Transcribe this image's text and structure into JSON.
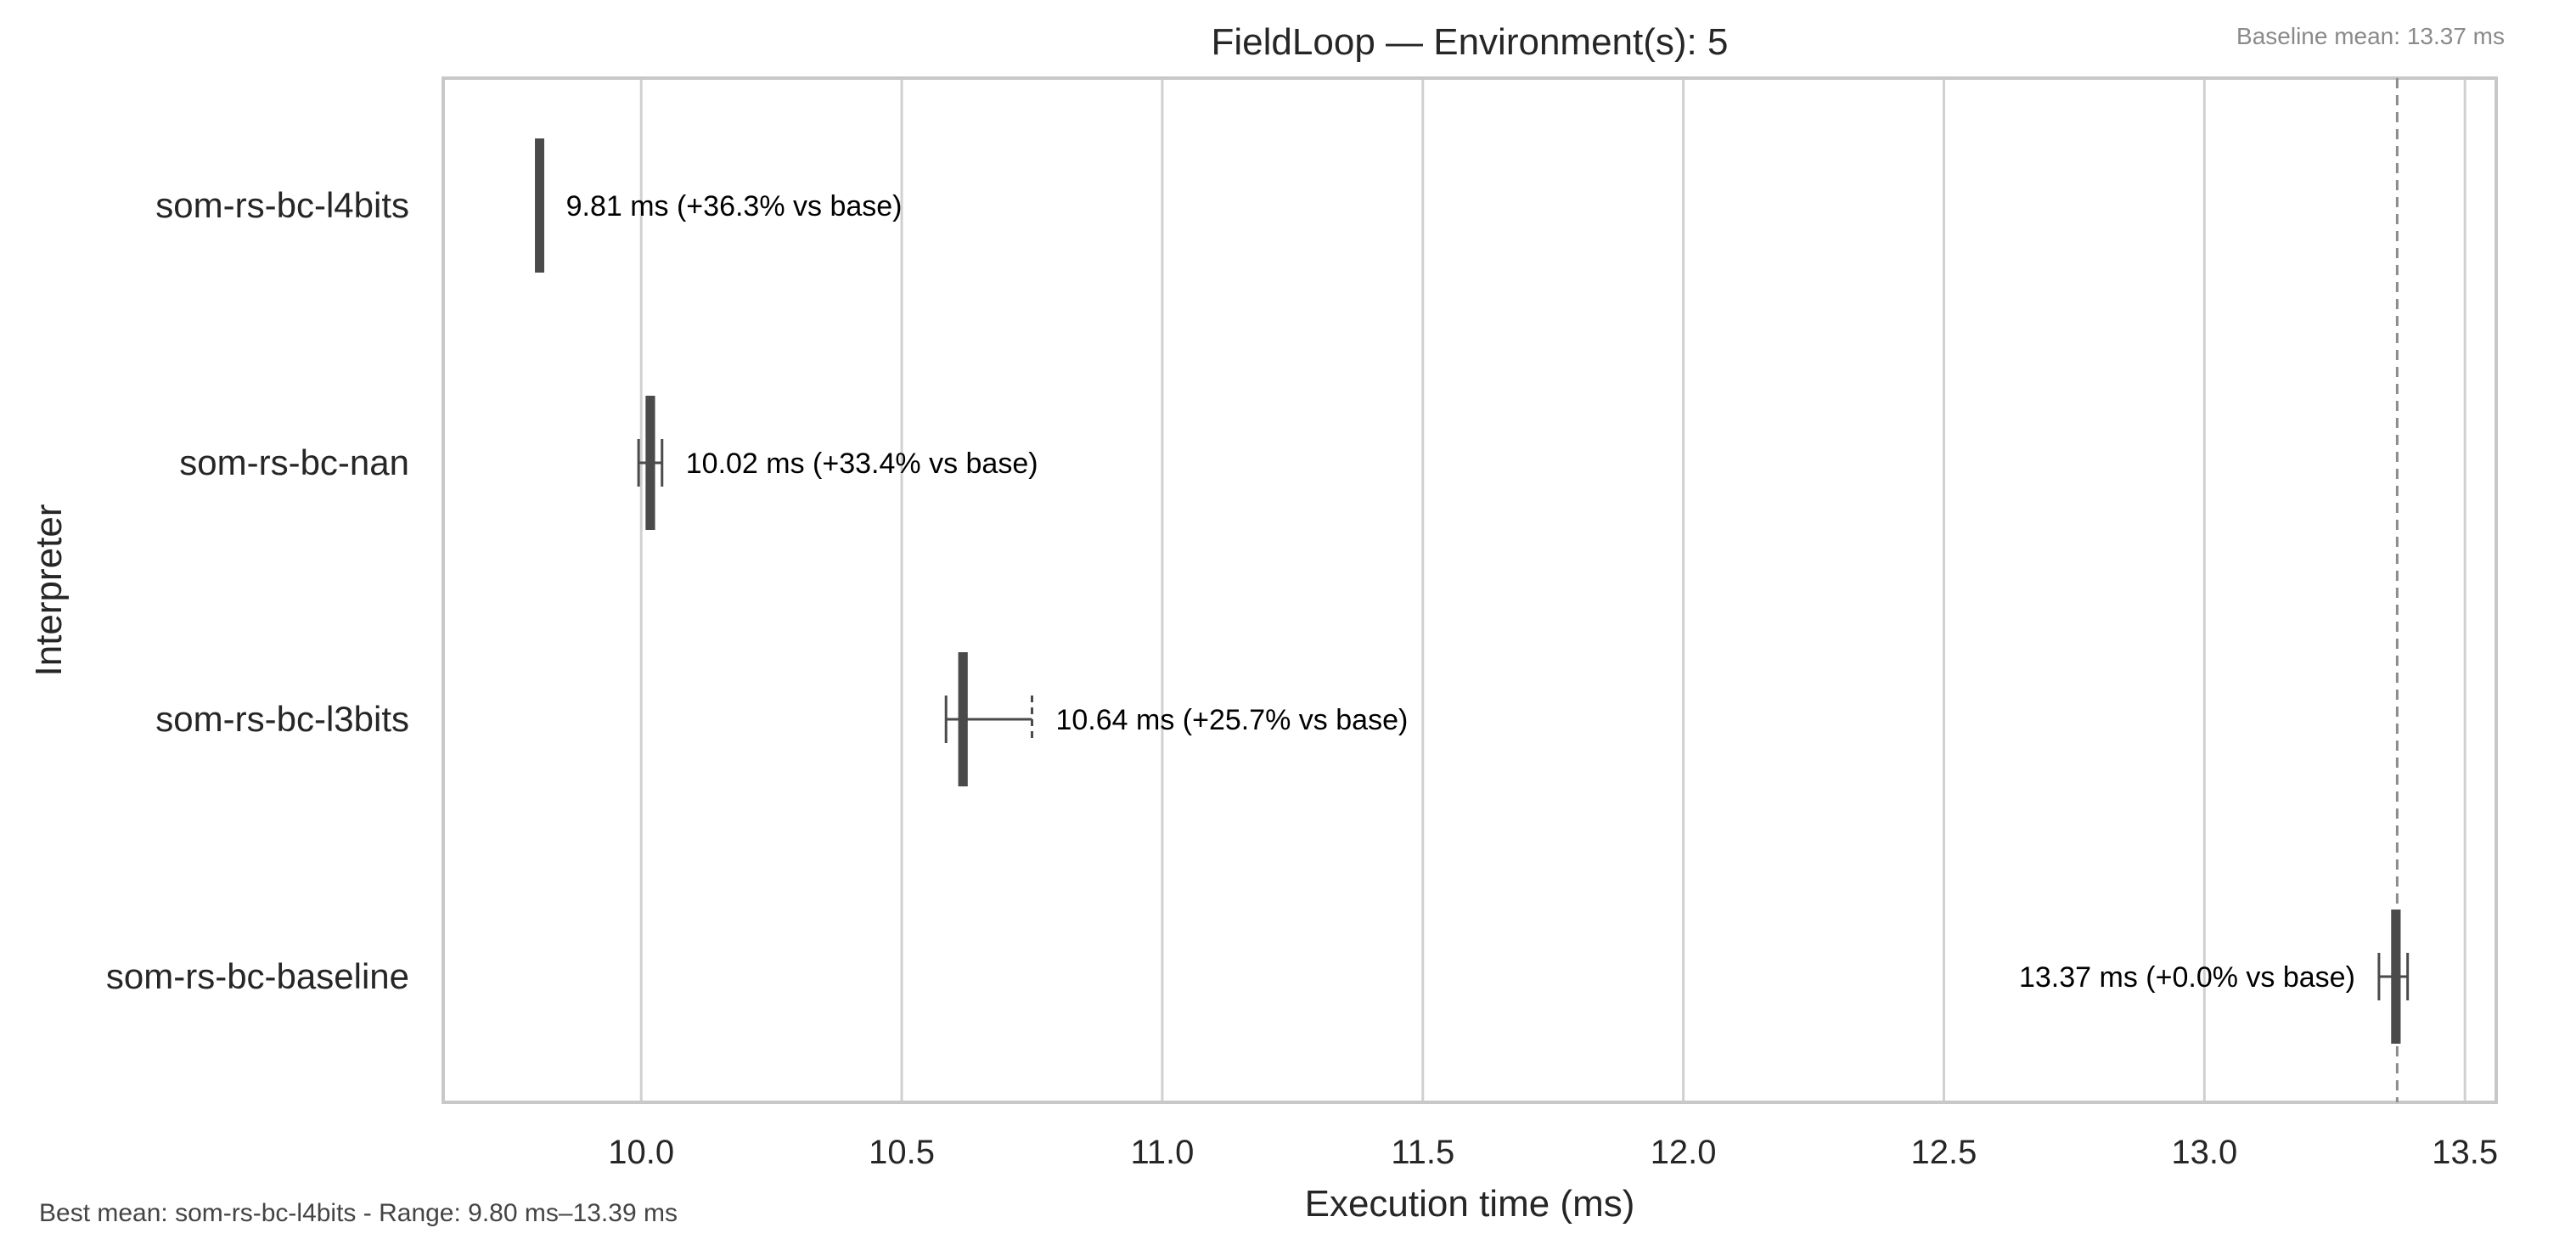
{
  "chart_data": {
    "type": "boxplot",
    "orientation": "horizontal",
    "title": "FieldLoop — Environment(s): 5",
    "xlabel": "Execution time (ms)",
    "ylabel": "Interpreter",
    "xlim": [
      9.62,
      13.56
    ],
    "x_ticks": [
      10.0,
      10.5,
      11.0,
      11.5,
      12.0,
      12.5,
      13.0,
      13.5
    ],
    "x_tick_labels": [
      "10.0",
      "10.5",
      "11.0",
      "11.5",
      "12.0",
      "12.5",
      "13.0",
      "13.5"
    ],
    "grid": "vertical",
    "baseline": {
      "value": 13.37,
      "label": "Baseline mean: 13.37 ms",
      "style": "dashed"
    },
    "footer": "Best mean: som-rs-bc-l4bits - Range: 9.80 ms–13.39 ms",
    "series": [
      {
        "name": "som-rs-bc-l4bits",
        "min": 9.8,
        "q1": 9.8,
        "median": 9.81,
        "q3": 9.81,
        "max": 9.81,
        "annotation": "9.81 ms  (+36.3% vs base)",
        "annotation_side": "right"
      },
      {
        "name": "som-rs-bc-nan",
        "min": 9.995,
        "q1": 10.01,
        "median": 10.02,
        "q3": 10.025,
        "max": 10.04,
        "annotation": "10.02 ms  (+33.4% vs base)",
        "annotation_side": "right"
      },
      {
        "name": "som-rs-bc-l3bits",
        "min": 10.585,
        "q1": 10.61,
        "median": 10.62,
        "q3": 10.625,
        "max": 10.75,
        "annotation": "10.64 ms  (+25.7% vs base)",
        "annotation_side": "right"
      },
      {
        "name": "som-rs-bc-baseline",
        "min": 13.335,
        "q1": 13.36,
        "median": 13.37,
        "q3": 13.375,
        "max": 13.39,
        "annotation": "13.37 ms  (+0.0% vs base)",
        "annotation_side": "left"
      }
    ],
    "colors": {
      "box": "#4a4a4a",
      "grid": "#d0d0d0",
      "frame": "#c8c8c8",
      "baseline": "#8c8c8c",
      "text": "#262626",
      "annotation": "#000000",
      "muted": "#8a8a8a",
      "footer": "#444444"
    }
  }
}
